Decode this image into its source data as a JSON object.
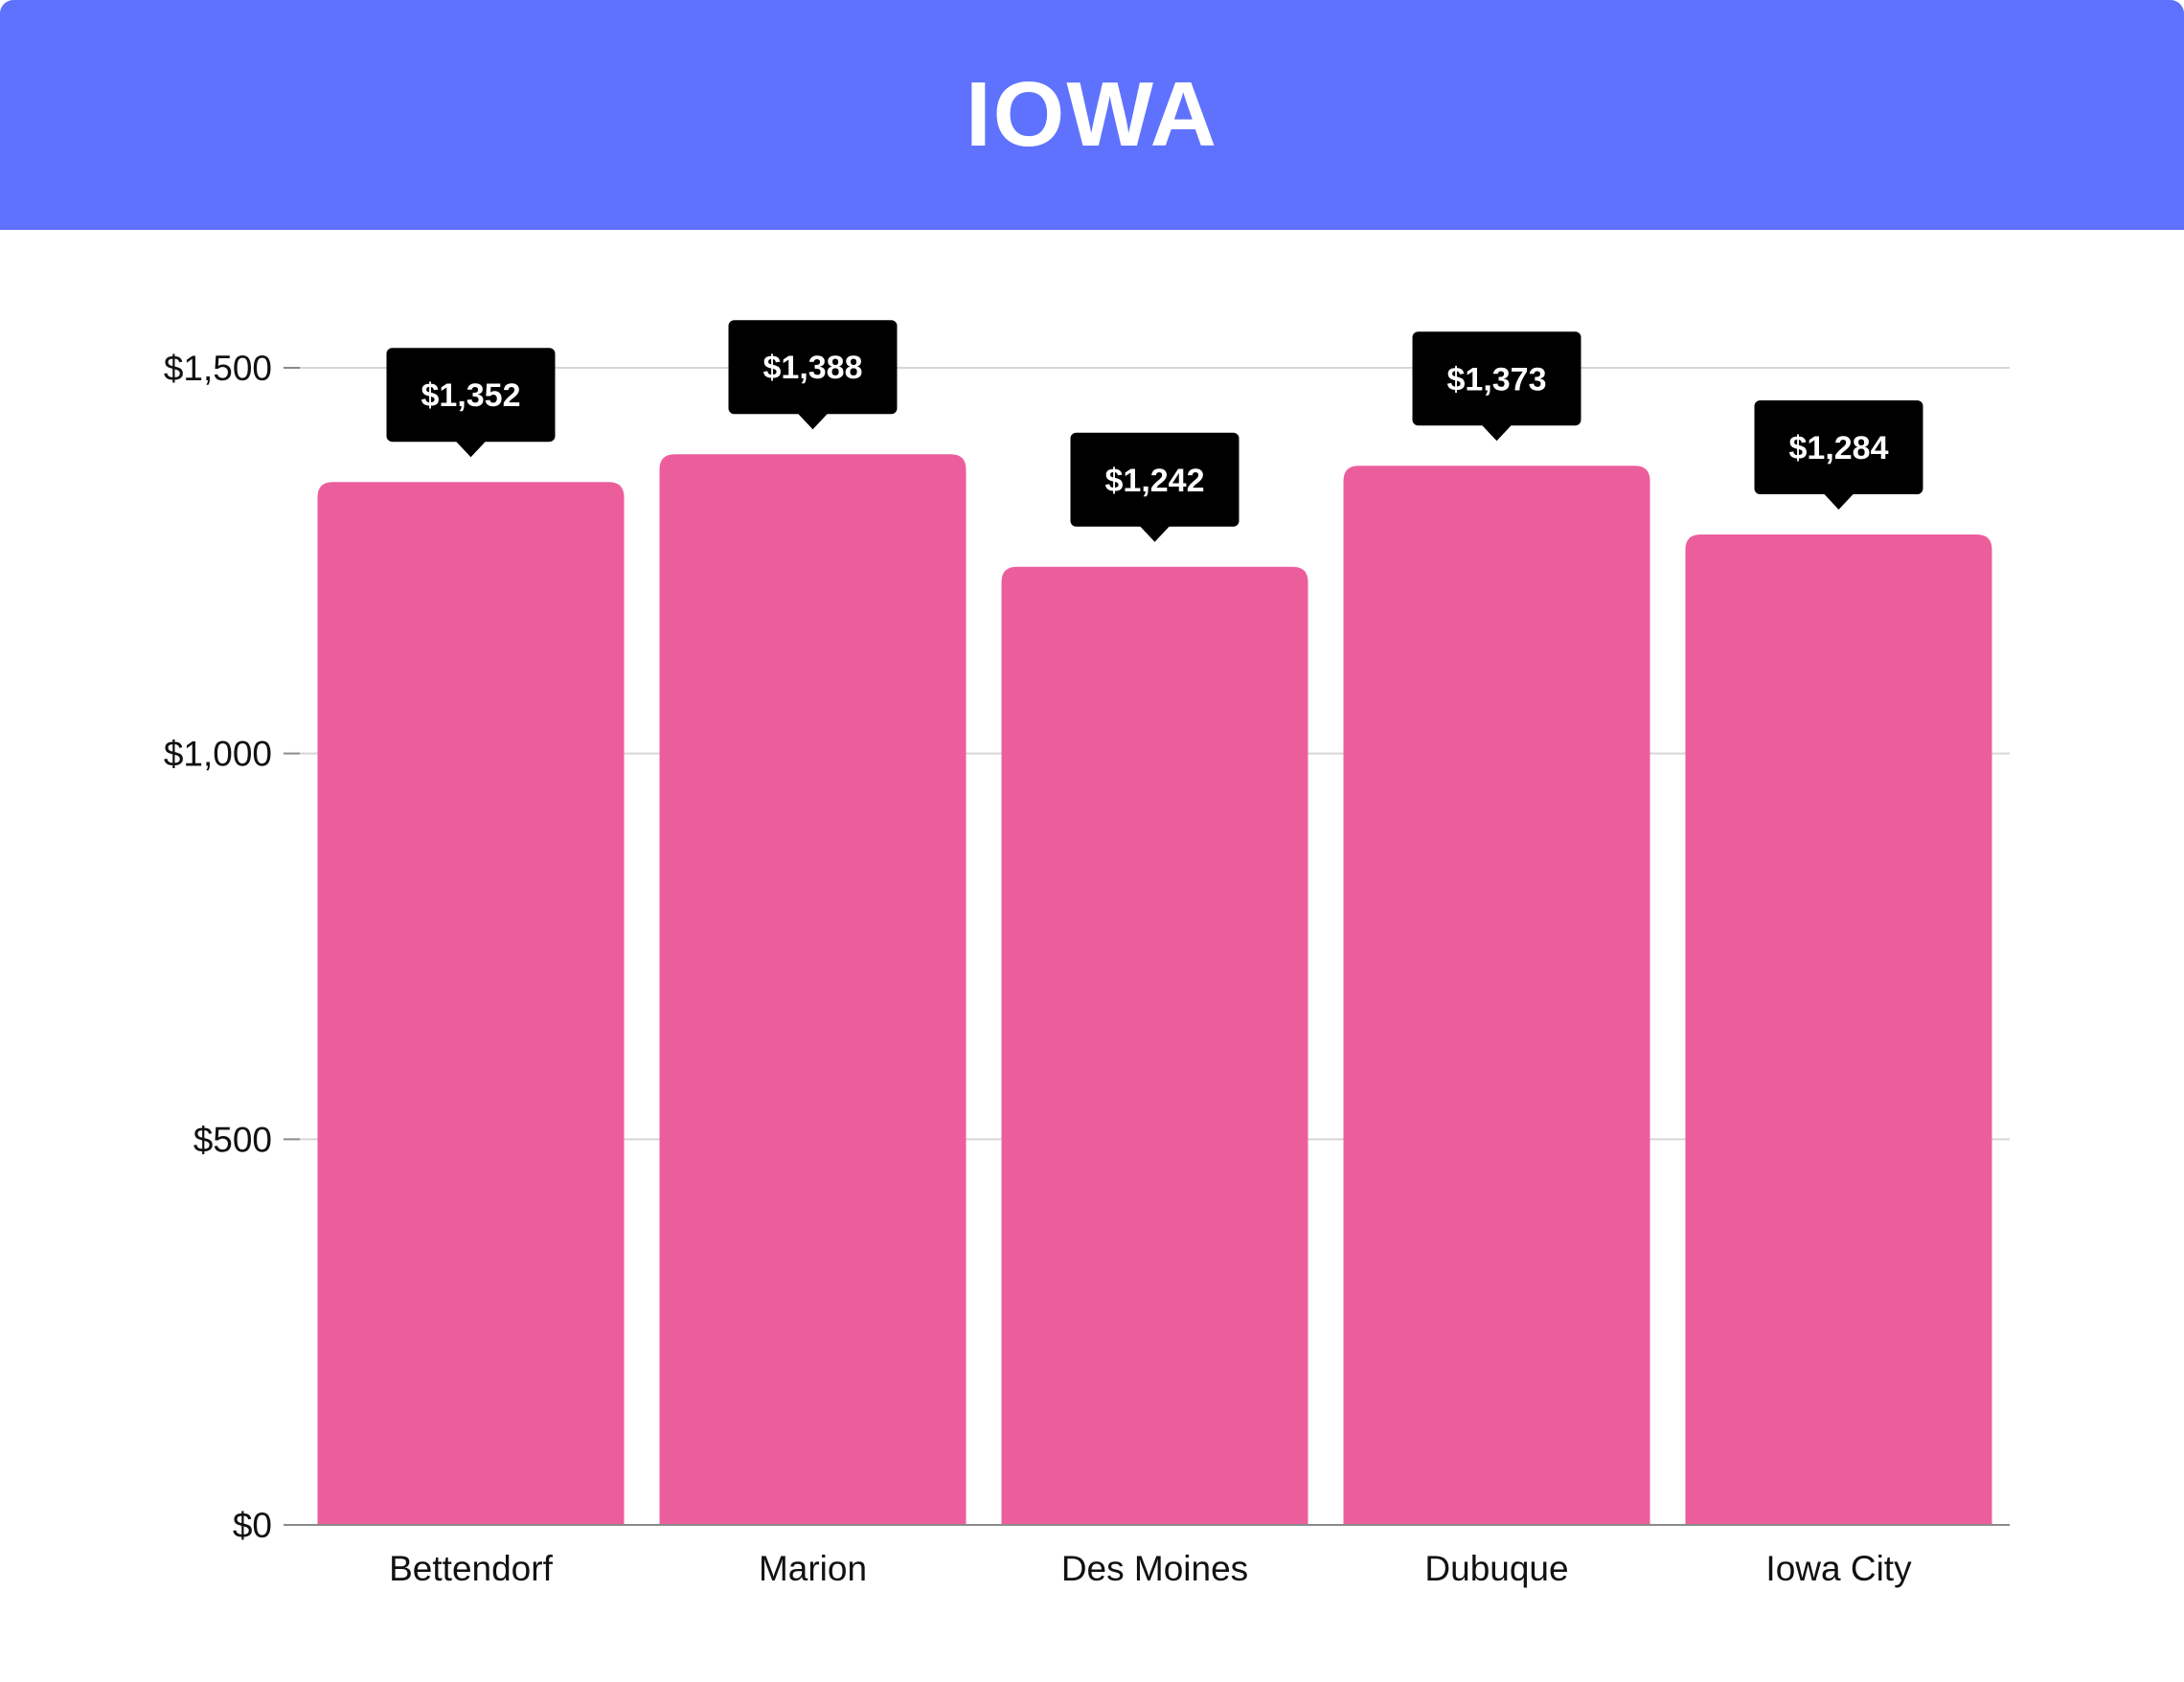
{
  "header": {
    "title": "IOWA"
  },
  "colors": {
    "header_bg": "#5f72fe",
    "bar": "#ec5e9b",
    "callout_bg": "#000000",
    "callout_text": "#ffffff",
    "grid": "#d6d6d6",
    "axis": "#8a8a8a"
  },
  "chart_data": {
    "type": "bar",
    "title": "IOWA",
    "categories": [
      "Bettendorf",
      "Marion",
      "Des Moines",
      "Dubuque",
      "Iowa City"
    ],
    "values": [
      1352,
      1388,
      1242,
      1373,
      1284
    ],
    "data_labels": [
      "$1,352",
      "$1,388",
      "$1,242",
      "$1,373",
      "$1,284"
    ],
    "y_ticks": [
      0,
      500,
      1000,
      1500
    ],
    "y_tick_labels": [
      "$0",
      "$500",
      "$1,000",
      "$1,500"
    ],
    "ylim": [
      0,
      1500
    ],
    "xlabel": "",
    "ylabel": "",
    "grid": true,
    "legend": "none"
  }
}
